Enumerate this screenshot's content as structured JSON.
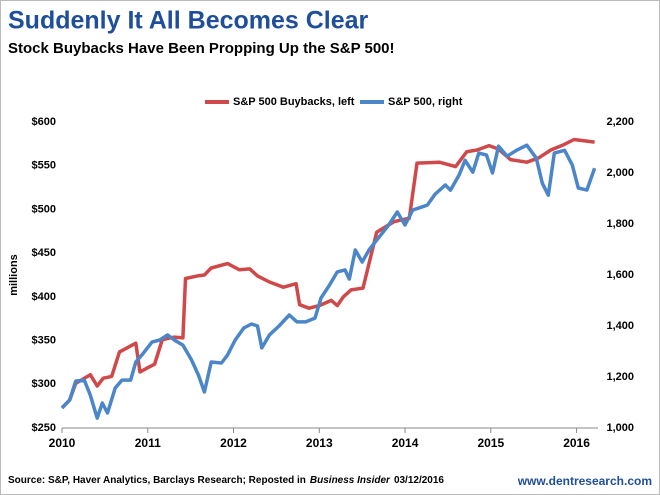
{
  "chart_data": {
    "type": "line",
    "title": "Suddenly It All Becomes Clear",
    "subtitle": "Stock Buybacks Have Been Propping Up the S&P 500!",
    "ylabel": "millions",
    "xlim": [
      2010,
      2016.25
    ],
    "xticks": [
      2010,
      2011,
      2012,
      2013,
      2014,
      2015,
      2016
    ],
    "ylim": [
      250,
      600
    ],
    "yticks": [
      {
        "value": 250,
        "label": "$250"
      },
      {
        "value": 300,
        "label": "$300"
      },
      {
        "value": 350,
        "label": "$350"
      },
      {
        "value": 400,
        "label": "$400"
      },
      {
        "value": 450,
        "label": "$450"
      },
      {
        "value": 500,
        "label": "$500"
      },
      {
        "value": 550,
        "label": "$550"
      },
      {
        "value": 600,
        "label": "$600"
      }
    ],
    "y2lim": [
      1000,
      2200
    ],
    "y2ticks": [
      {
        "value": 1000,
        "label": "1,000"
      },
      {
        "value": 1200,
        "label": "1,200"
      },
      {
        "value": 1400,
        "label": "1,400"
      },
      {
        "value": 1600,
        "label": "1,600"
      },
      {
        "value": 1800,
        "label": "1,800"
      },
      {
        "value": 2000,
        "label": "2,000"
      },
      {
        "value": 2200,
        "label": "2,200"
      }
    ],
    "grid": false,
    "legend": "top",
    "series": [
      {
        "name": "S&P 500 Buybacks, left",
        "color": "#d0494a",
        "axis": "y",
        "x": [
          2010.0,
          2010.09,
          2010.16,
          2010.33,
          2010.41,
          2010.48,
          2010.58,
          2010.67,
          2010.86,
          2010.91,
          2011.0,
          2011.08,
          2011.17,
          2011.31,
          2011.41,
          2011.44,
          2011.58,
          2011.66,
          2011.74,
          2011.93,
          2012.07,
          2012.19,
          2012.28,
          2012.42,
          2012.58,
          2012.73,
          2012.77,
          2012.88,
          2013.0,
          2013.14,
          2013.21,
          2013.28,
          2013.37,
          2013.51,
          2013.67,
          2013.87,
          2014.05,
          2014.14,
          2014.4,
          2014.59,
          2014.72,
          2014.84,
          2014.98,
          2015.09,
          2015.23,
          2015.42,
          2015.56,
          2015.7,
          2015.85,
          2015.97,
          2016.21
        ],
        "values": [
          273,
          282,
          301,
          311,
          298,
          307,
          309,
          337,
          347,
          314,
          319,
          323,
          351,
          354,
          353,
          421,
          424,
          425,
          433,
          438,
          431,
          432,
          424,
          417,
          411,
          415,
          391,
          387,
          390,
          396,
          390,
          400,
          408,
          410,
          474,
          486,
          490,
          553,
          554,
          549,
          566,
          568,
          573,
          569,
          557,
          554,
          559,
          568,
          574,
          580,
          577
        ]
      },
      {
        "name": "S&P 500, right",
        "color": "#4a86c8",
        "axis": "y2",
        "x": [
          2010.0,
          2010.09,
          2010.16,
          2010.26,
          2010.33,
          2010.41,
          2010.47,
          2010.53,
          2010.62,
          2010.7,
          2010.8,
          2010.86,
          2010.94,
          2011.05,
          2011.14,
          2011.23,
          2011.31,
          2011.41,
          2011.51,
          2011.59,
          2011.66,
          2011.74,
          2011.86,
          2011.93,
          2012.02,
          2012.12,
          2012.21,
          2012.28,
          2012.33,
          2012.42,
          2012.53,
          2012.65,
          2012.74,
          2012.84,
          2012.95,
          2013.02,
          2013.12,
          2013.21,
          2013.3,
          2013.35,
          2013.42,
          2013.5,
          2013.58,
          2013.67,
          2013.81,
          2013.91,
          2014.0,
          2014.09,
          2014.19,
          2014.26,
          2014.35,
          2014.47,
          2014.53,
          2014.63,
          2014.7,
          2014.79,
          2014.86,
          2014.95,
          2015.02,
          2015.09,
          2015.19,
          2015.3,
          2015.42,
          2015.53,
          2015.6,
          2015.67,
          2015.74,
          2015.86,
          2015.95,
          2016.02,
          2016.12,
          2016.21
        ],
        "values": [
          1078,
          1110,
          1184,
          1188,
          1129,
          1039,
          1098,
          1059,
          1157,
          1188,
          1188,
          1259,
          1290,
          1337,
          1345,
          1365,
          1345,
          1325,
          1267,
          1208,
          1141,
          1259,
          1255,
          1286,
          1345,
          1392,
          1408,
          1400,
          1314,
          1365,
          1400,
          1443,
          1416,
          1416,
          1431,
          1510,
          1561,
          1612,
          1620,
          1584,
          1698,
          1651,
          1698,
          1737,
          1796,
          1847,
          1796,
          1855,
          1866,
          1874,
          1917,
          1953,
          1933,
          1992,
          2050,
          2003,
          2078,
          2070,
          2000,
          2105,
          2066,
          2089,
          2109,
          2058,
          1960,
          1913,
          2078,
          2089,
          2031,
          1941,
          1933,
          2019
        ]
      }
    ],
    "source": [
      "Source: S&P, Haver Analytics, Barclays Research; Reposted in",
      "Business Insider",
      "03/12/2016"
    ],
    "website": "www.dentresearch.com"
  }
}
